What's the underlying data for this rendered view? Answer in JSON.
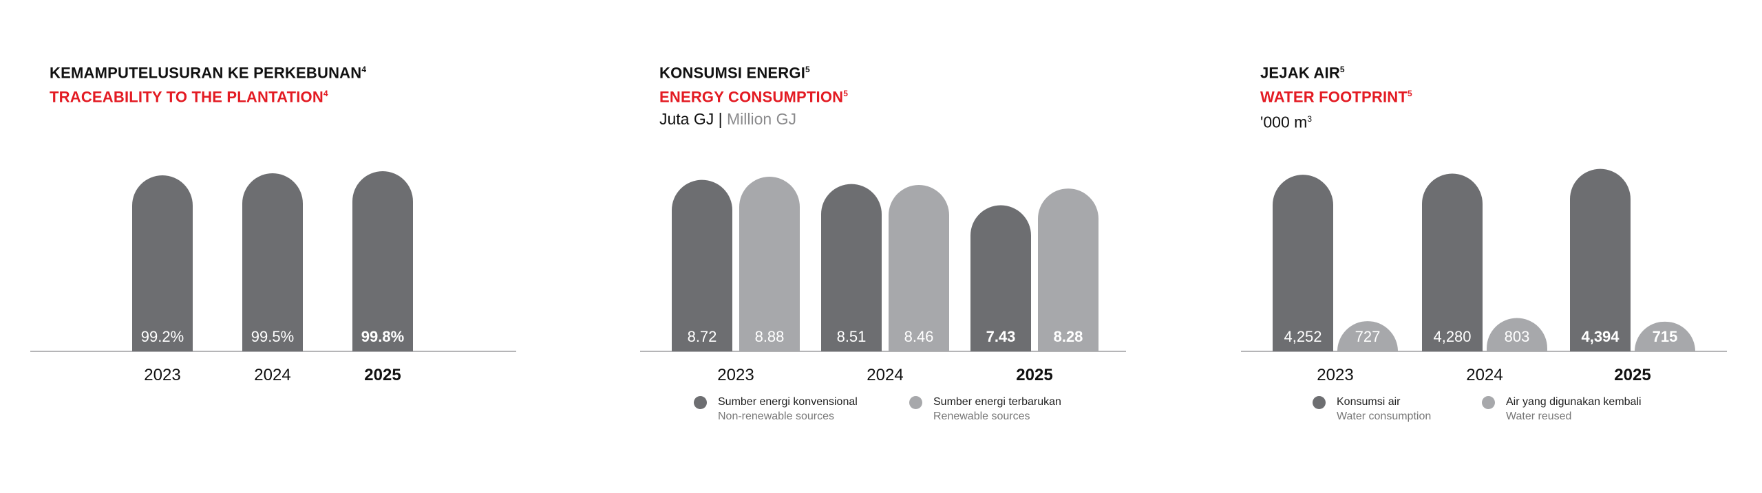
{
  "colors": {
    "dark": "#6d6e71",
    "light": "#a7a8ab",
    "accent": "#e31b23",
    "axis": "#b5b5b7"
  },
  "panels": [
    {
      "title_id": "KEMAMPUTELUSURAN KE PERKEBUNAN",
      "title_id_sup": "4",
      "title_en": "TRACEABILITY TO THE PLANTATION",
      "title_en_sup": "4",
      "unit_id": "",
      "unit_en": ""
    },
    {
      "title_id": "KONSUMSI ENERGI",
      "title_id_sup": "5",
      "title_en": "ENERGY CONSUMPTION",
      "title_en_sup": "5",
      "unit_id": "Juta GJ | ",
      "unit_en": "Million GJ",
      "legend": [
        {
          "label_id": "Sumber energi konvensional",
          "label_en": "Non-renewable sources",
          "color": "#6d6e71"
        },
        {
          "label_id": "Sumber energi terbarukan",
          "label_en": "Renewable sources",
          "color": "#a7a8ab"
        }
      ]
    },
    {
      "title_id": "JEJAK AIR",
      "title_id_sup": "5",
      "title_en": "WATER FOOTPRINT",
      "title_en_sup": "5",
      "unit_id": "'000 m",
      "unit_sup": "3",
      "unit_en": "",
      "legend": [
        {
          "label_id": "Konsumsi air",
          "label_en": "Water consumption",
          "color": "#6d6e71"
        },
        {
          "label_id": "Air yang digunakan kembali",
          "label_en": "Water reused",
          "color": "#a7a8ab"
        }
      ]
    }
  ],
  "chart_data": [
    {
      "type": "bar",
      "categories": [
        "2023",
        "2024",
        "2025"
      ],
      "bold_category": "2025",
      "series": [
        {
          "values": [
            99.2,
            99.5,
            99.8
          ],
          "labels": [
            "99.2%",
            "99.5%",
            "99.8%"
          ],
          "color": "#6d6e71"
        }
      ]
    },
    {
      "type": "bar",
      "categories": [
        "2023",
        "2024",
        "2025"
      ],
      "bold_category": "2025",
      "series": [
        {
          "name": "Sumber energi konvensional",
          "values": [
            8.72,
            8.51,
            7.43
          ],
          "labels": [
            "8.72",
            "8.51",
            "7.43"
          ],
          "color": "#6d6e71"
        },
        {
          "name": "Sumber energi terbarukan",
          "values": [
            8.88,
            8.46,
            8.28
          ],
          "labels": [
            "8.88",
            "8.46",
            "8.28"
          ],
          "color": "#a7a8ab"
        }
      ]
    },
    {
      "type": "bar",
      "categories": [
        "2023",
        "2024",
        "2025"
      ],
      "bold_category": "2025",
      "series": [
        {
          "name": "Konsumsi air",
          "values": [
            4252,
            4280,
            4394
          ],
          "labels": [
            "4,252",
            "4,280",
            "4,394"
          ],
          "color": "#6d6e71"
        },
        {
          "name": "Air yang digunakan kembali",
          "values": [
            727,
            803,
            715
          ],
          "labels": [
            "727",
            "803",
            "715"
          ],
          "color": "#a7a8ab"
        }
      ]
    }
  ]
}
